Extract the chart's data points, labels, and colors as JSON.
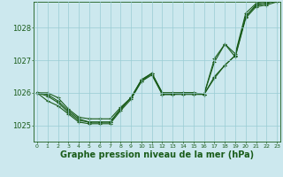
{
  "bg_color": "#cce8ee",
  "grid_color": "#99ccd4",
  "line_color": "#1a5c1a",
  "xlabel": "Graphe pression niveau de la mer (hPa)",
  "xlabel_fontsize": 7,
  "xticks": [
    0,
    1,
    2,
    3,
    4,
    5,
    6,
    7,
    8,
    9,
    10,
    11,
    12,
    13,
    14,
    15,
    16,
    17,
    18,
    19,
    20,
    21,
    22,
    23
  ],
  "yticks": [
    1025,
    1026,
    1027,
    1028
  ],
  "ylim": [
    1024.5,
    1028.8
  ],
  "xlim": [
    -0.3,
    23.3
  ],
  "series": [
    [
      1026.0,
      1026.0,
      1025.85,
      1025.5,
      1025.25,
      1025.2,
      1025.2,
      1025.2,
      1025.55,
      1025.85,
      1026.35,
      1026.55,
      1025.95,
      1025.95,
      1026.0,
      1026.0,
      1025.95,
      1026.95,
      1027.5,
      1027.1,
      1028.3,
      1028.65,
      1028.7,
      1028.8
    ],
    [
      1026.0,
      1025.95,
      1025.75,
      1025.45,
      1025.2,
      1025.1,
      1025.1,
      1025.1,
      1025.5,
      1025.85,
      1026.4,
      1026.6,
      1026.0,
      1026.0,
      1026.0,
      1026.0,
      1025.95,
      1026.5,
      1026.85,
      1027.15,
      1028.35,
      1028.7,
      1028.75,
      1028.85
    ],
    [
      1026.0,
      1025.9,
      1025.7,
      1025.4,
      1025.15,
      1025.1,
      1025.1,
      1025.1,
      1025.5,
      1025.85,
      1026.4,
      1026.6,
      1026.0,
      1026.0,
      1026.0,
      1026.0,
      1025.95,
      1026.45,
      1026.85,
      1027.15,
      1028.35,
      1028.7,
      1028.75,
      1028.85
    ],
    [
      1026.0,
      1025.75,
      1025.6,
      1025.35,
      1025.1,
      1025.05,
      1025.05,
      1025.05,
      1025.45,
      1025.8,
      1026.35,
      1026.6,
      1025.95,
      1025.95,
      1025.95,
      1025.95,
      1025.95,
      1027.05,
      1027.5,
      1027.2,
      1028.45,
      1028.75,
      1028.8,
      1028.9
    ]
  ]
}
